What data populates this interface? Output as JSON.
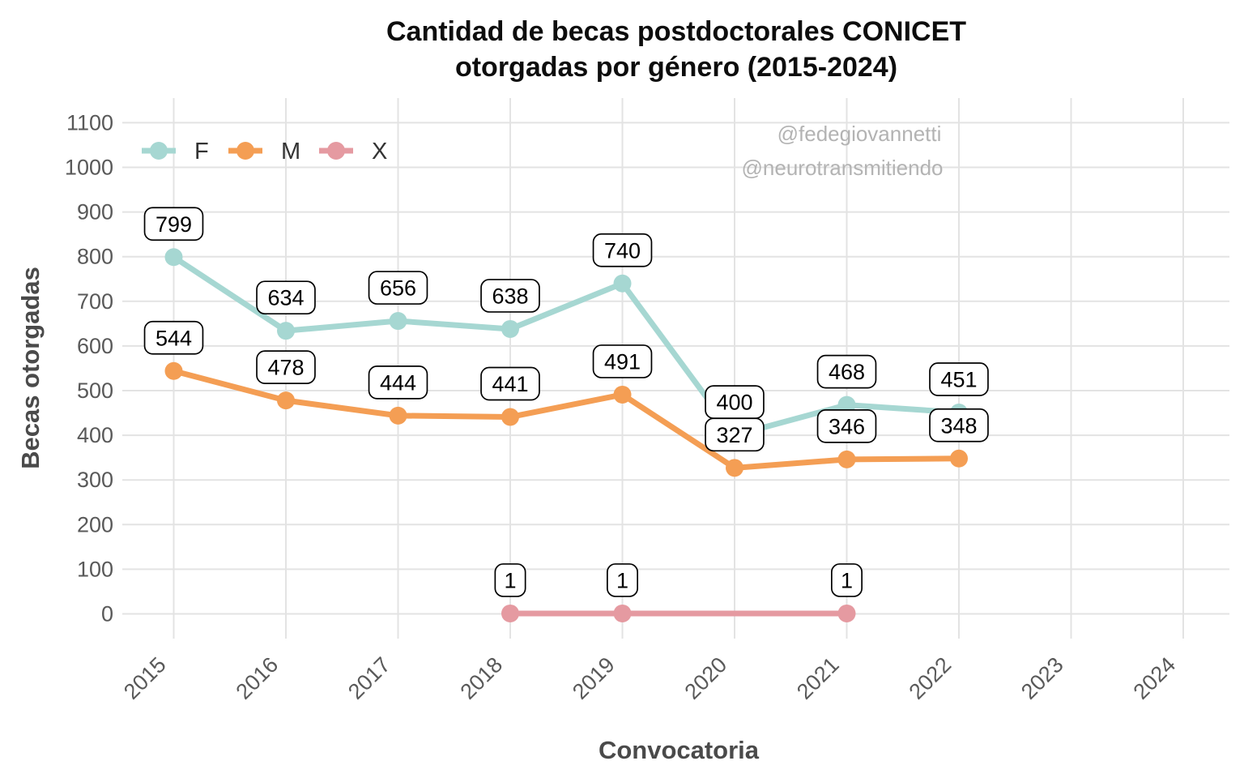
{
  "title": {
    "line1": "Cantidad de becas postdoctorales CONICET",
    "line2": "otorgadas por género (2015-2024)"
  },
  "watermarks": [
    "@fedegiovannetti",
    "@neurotransmitiendo"
  ],
  "colors": {
    "background": "#ffffff",
    "grid": "#e3e3e3",
    "tick_label": "#595959",
    "axis_title": "#4a4a4a",
    "title": "#0d0d0d",
    "watermark": "#b3b3b3",
    "legend_text": "#333333",
    "label_box_fill": "#ffffff",
    "label_box_border": "#000000",
    "series_F": "#a6d7d2",
    "series_M": "#f49e54",
    "series_X": "#e59aa1"
  },
  "chart_data": {
    "type": "line",
    "title": "Cantidad de becas postdoctorales CONICET otorgadas por género (2015-2024)",
    "xlabel": "Convocatoria",
    "ylabel": "Becas otorgadas",
    "x_ticks": [
      2015,
      2016,
      2017,
      2018,
      2019,
      2020,
      2021,
      2022,
      2023,
      2024
    ],
    "y_ticks": [
      0,
      100,
      200,
      300,
      400,
      500,
      600,
      700,
      800,
      900,
      1000,
      1100
    ],
    "xlim": [
      2015,
      2024
    ],
    "ylim": [
      0,
      1100
    ],
    "grid": true,
    "point_labels": true,
    "legend": {
      "position": "top-left-inside",
      "entries": [
        "F",
        "M",
        "X"
      ]
    },
    "series": [
      {
        "name": "F",
        "color": "#a6d7d2",
        "x": [
          2015,
          2016,
          2017,
          2018,
          2019,
          2020,
          2021,
          2022
        ],
        "values": [
          799,
          634,
          656,
          638,
          740,
          400,
          468,
          451
        ]
      },
      {
        "name": "M",
        "color": "#f49e54",
        "x": [
          2015,
          2016,
          2017,
          2018,
          2019,
          2020,
          2021,
          2022
        ],
        "values": [
          544,
          478,
          444,
          441,
          491,
          327,
          346,
          348
        ]
      },
      {
        "name": "X",
        "color": "#e59aa1",
        "x": [
          2018,
          2019,
          2021
        ],
        "values": [
          1,
          1,
          1
        ]
      }
    ]
  }
}
